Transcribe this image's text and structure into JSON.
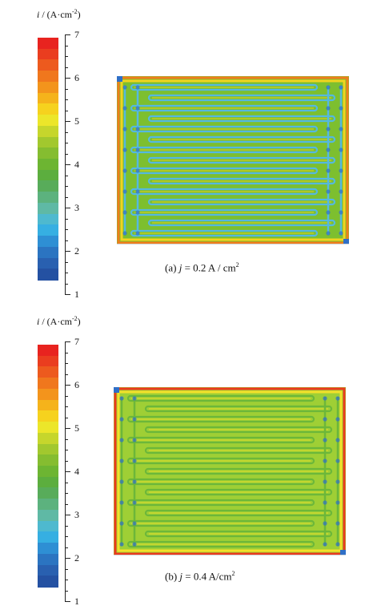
{
  "colorbar": {
    "label": "i / (A·cm-2)",
    "label_var": "i",
    "label_unit_pre": " / (A·cm",
    "label_unit_exp": "-2",
    "label_unit_post": ")",
    "ticks": [
      "7",
      "6",
      "5",
      "4",
      "3",
      "2",
      "1"
    ],
    "range": [
      1,
      7
    ],
    "colors": [
      "#e8231f",
      "#ea3d1f",
      "#ed5a1e",
      "#f0771d",
      "#f3941c",
      "#f5b31b",
      "#f6d21e",
      "#ece62a",
      "#c6d62c",
      "#a2c82e",
      "#85bd30",
      "#6db532",
      "#5cae3e",
      "#58ac5a",
      "#5cb27e",
      "#5fb9a5",
      "#4eb9cf",
      "#36afe2",
      "#2e8fd4",
      "#2b74c1",
      "#2960b0",
      "#2451a2"
    ]
  },
  "panels": [
    {
      "id": "a",
      "caption_prefix": "(a) ",
      "caption_var": "j",
      "caption_value": " = 0.2 A / cm",
      "caption_exp": "2",
      "palette": {
        "base": "#7dbf2f",
        "channel": "#55b8e0",
        "edge": "#2f6fc7",
        "high": "#f2d31f",
        "hot": "#f07d1d"
      }
    },
    {
      "id": "b",
      "caption_prefix": "(b)  ",
      "caption_var": "j",
      "caption_value": " = 0.4  A/cm",
      "caption_exp": "2",
      "palette": {
        "base": "#9fcf35",
        "channel": "#6cb73a",
        "edge": "#2f6fc7",
        "high": "#f3e02a",
        "hot": "#ea3a1f"
      }
    }
  ]
}
